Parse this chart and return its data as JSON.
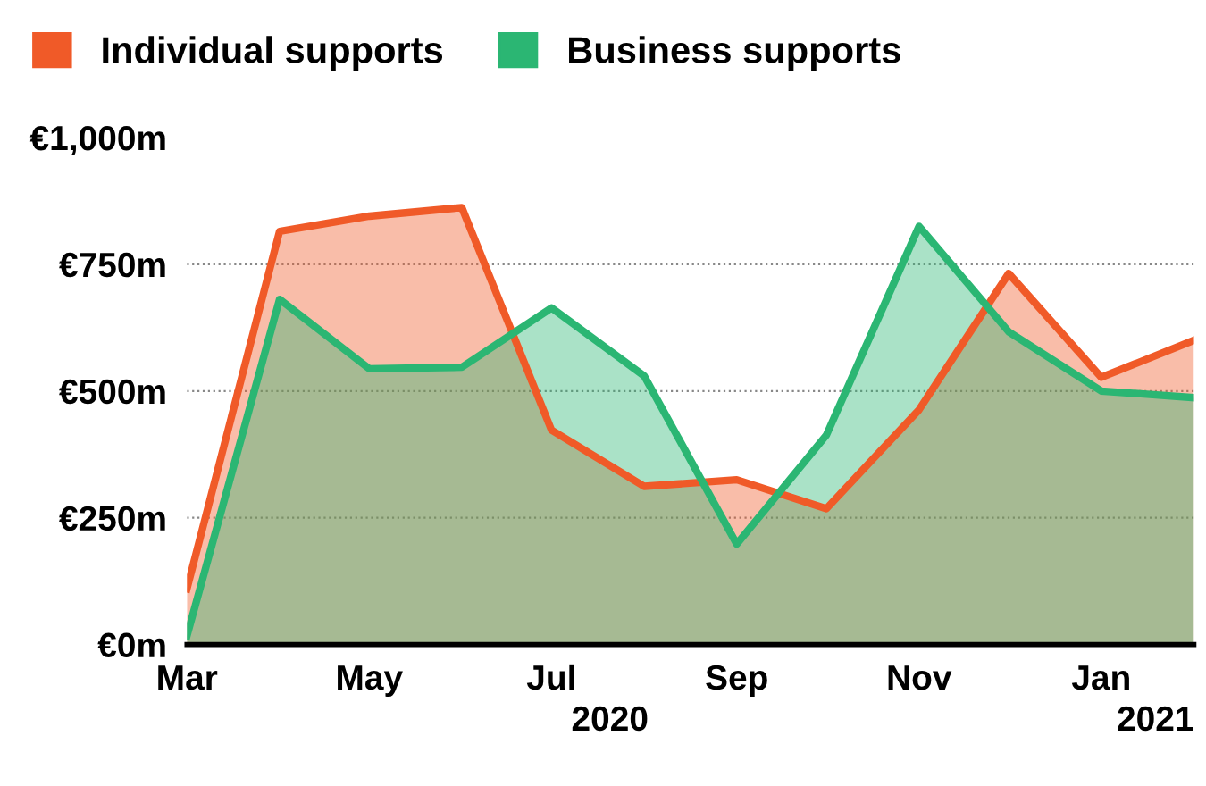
{
  "chart_data": {
    "type": "area",
    "x": [
      "2020-03",
      "2020-04",
      "2020-05",
      "2020-06",
      "2020-07",
      "2020-08",
      "2020-09",
      "2020-10",
      "2020-11",
      "2020-12",
      "2021-01",
      "2021-02"
    ],
    "series": [
      {
        "name": "Individual supports",
        "color": "#f05a28",
        "values": [
          110,
          815,
          845,
          862,
          423,
          312,
          325,
          268,
          463,
          732,
          527,
          600
        ]
      },
      {
        "name": "Business supports",
        "color": "#2bb673",
        "values": [
          17,
          681,
          544,
          547,
          664,
          530,
          198,
          413,
          825,
          617,
          500,
          487
        ]
      }
    ],
    "xlim": [
      "2020-03",
      "2021-02"
    ],
    "xticks": [
      {
        "value": "2020-03",
        "label": "Mar"
      },
      {
        "value": "2020-05",
        "label": "May"
      },
      {
        "value": "2020-07",
        "label": "Jul"
      },
      {
        "value": "2020-09",
        "label": "Sep"
      },
      {
        "value": "2020-11",
        "label": "Nov"
      },
      {
        "value": "2021-01",
        "label": "Jan"
      }
    ],
    "ylim": [
      0,
      1000
    ],
    "yticks": [
      {
        "value": 0,
        "label": "€0m"
      },
      {
        "value": 250,
        "label": "€250m"
      },
      {
        "value": 500,
        "label": "€500m"
      },
      {
        "value": 750,
        "label": "€750m"
      },
      {
        "value": 1000,
        "label": "€1,000m"
      }
    ],
    "annotations": [
      "2020",
      "2021"
    ],
    "grid": "y",
    "legend": "top left"
  }
}
